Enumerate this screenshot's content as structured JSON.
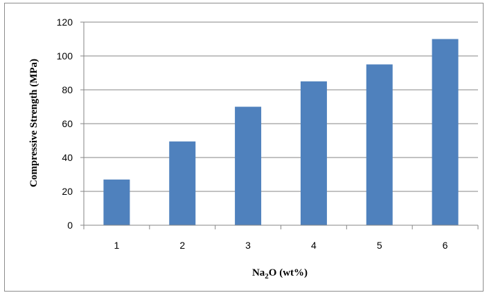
{
  "chart_data": {
    "type": "bar",
    "categories": [
      "1",
      "2",
      "3",
      "4",
      "5",
      "6"
    ],
    "values": [
      27,
      49.5,
      70,
      85,
      95,
      110
    ],
    "xlabel_parts": [
      "Na",
      "2",
      "O (wt%)"
    ],
    "ylabel": "Compressive Strength (MPa)",
    "ylim": [
      0,
      120
    ],
    "yticks": [
      0,
      20,
      40,
      60,
      80,
      100,
      120
    ],
    "grid": true,
    "legend": "none",
    "colors": {
      "bar": "#4F81BD",
      "grid": "#868686",
      "axis": "#868686"
    }
  }
}
